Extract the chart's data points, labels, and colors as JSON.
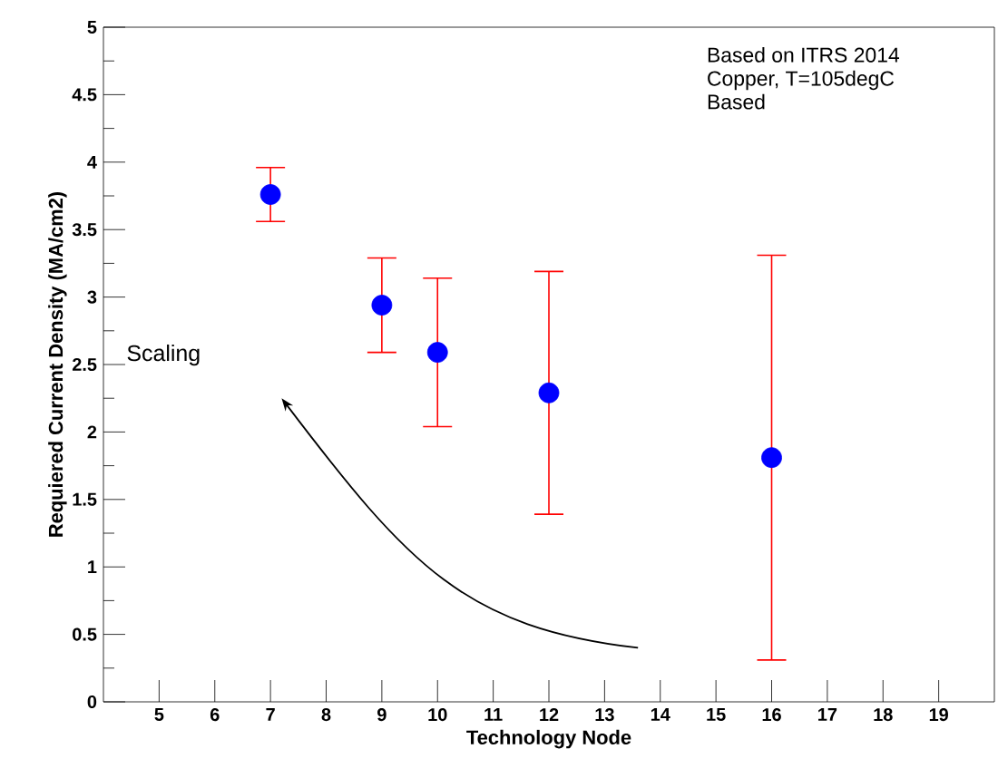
{
  "chart_data": {
    "type": "scatter",
    "xlabel": "Technology Node",
    "ylabel": "Requiered Current Density (MA/cm2)",
    "annotations": [
      "Based on ITRS 2014",
      "Copper, T=105degC",
      "Based",
      "Scaling"
    ],
    "x": [
      7,
      9,
      10,
      12,
      16
    ],
    "series": [
      {
        "color": "#0000ff",
        "values": [
          3.76,
          2.94,
          2.59,
          2.29,
          1.81
        ],
        "errors": [
          [
            3.56,
            3.96
          ],
          [
            2.59,
            3.29
          ],
          [
            2.04,
            3.14
          ],
          [
            1.39,
            3.19
          ],
          [
            0.31,
            3.31
          ]
        ]
      }
    ],
    "xlim": [
      4,
      20
    ],
    "xticks": [
      5,
      6,
      7,
      8,
      9,
      10,
      11,
      12,
      13,
      14,
      15,
      16,
      17,
      18,
      19
    ],
    "ylim": [
      0,
      5
    ],
    "yticks": [
      0,
      0.5,
      1,
      1.5,
      2,
      2.5,
      3,
      3.5,
      4,
      4.5,
      5
    ],
    "marker": "circle",
    "grid": false
  }
}
